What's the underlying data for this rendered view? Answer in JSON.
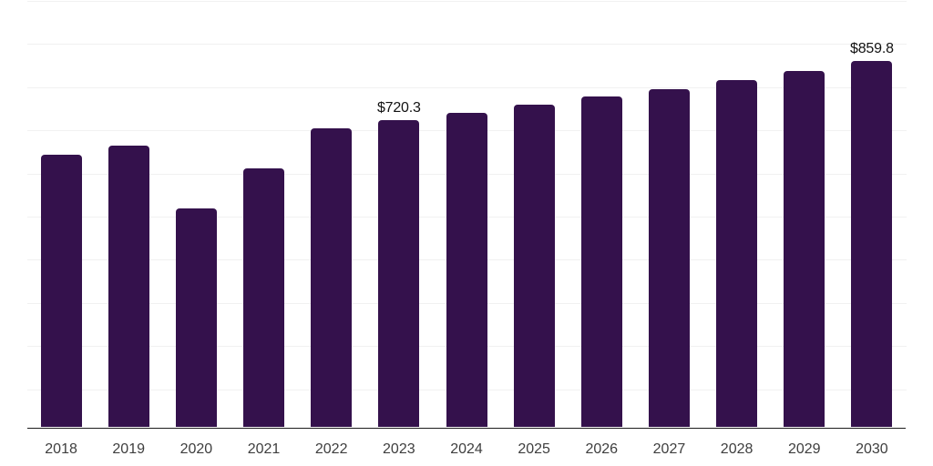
{
  "chart_data": {
    "type": "bar",
    "title": "",
    "xlabel": "",
    "ylabel": "",
    "categories": [
      "2018",
      "2019",
      "2020",
      "2021",
      "2022",
      "2023",
      "2024",
      "2025",
      "2026",
      "2027",
      "2028",
      "2029",
      "2030"
    ],
    "values": [
      640,
      660,
      513,
      608,
      701,
      720.3,
      737,
      756,
      775,
      794,
      814,
      836,
      859.8
    ],
    "data_labels": {
      "2023": "$720.3",
      "2030": "$859.8"
    },
    "ylim": [
      0,
      1000
    ],
    "gridlines": {
      "visible": true,
      "interval": 100,
      "count": 10
    },
    "y_axis_tick_labels_visible": false,
    "legend_position": "none",
    "colors": {
      "bar": "#34114C",
      "gridline": "#f1f1f1",
      "axis_line": "#1b1b1b",
      "tick_label": "#3e3e3e",
      "data_label": "#121212",
      "background": "#ffffff"
    }
  }
}
